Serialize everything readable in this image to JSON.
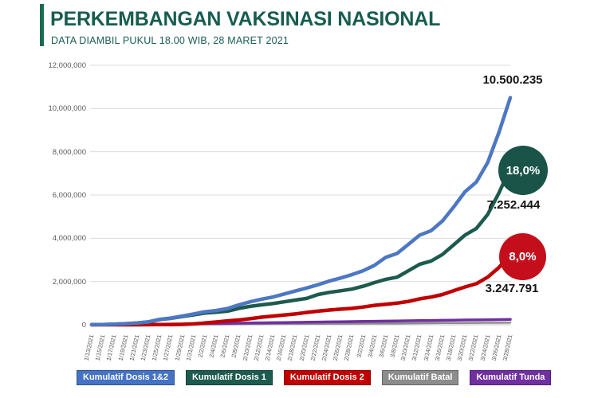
{
  "header": {
    "title": "PERKEMBANGAN VAKSINASI NASIONAL",
    "subtitle": "DATA DIAMBIL PUKUL 18.00 WIB, 28 MARET 2021",
    "accent_color": "#1a6b52",
    "title_color": "#185d4f"
  },
  "annotations": {
    "dosis12_total": "10.500.235",
    "dosis1_pct": "18,0%",
    "dosis1_total": "7.252.444",
    "dosis2_pct": "8,0%",
    "dosis2_total": "3.247.791",
    "dosis1_badge_color": "#1a5448",
    "dosis2_badge_color": "#c40e1c"
  },
  "legend": {
    "items": [
      {
        "label": "Kumulatif Dosis 1&2",
        "color": "#4472c4"
      },
      {
        "label": "Kumulatif Dosis 1",
        "color": "#1e5b4f"
      },
      {
        "label": "Kumulatif Dosis 2",
        "color": "#c00000"
      },
      {
        "label": "Kumulatif Batal",
        "color": "#8c8c8c"
      },
      {
        "label": "Kumulatif Tunda",
        "color": "#7030a0"
      }
    ]
  },
  "chart_data": {
    "type": "line",
    "title": "PERKEMBANGAN VAKSINASI NASIONAL",
    "xlabel": "",
    "ylabel": "",
    "ylim": [
      0,
      12000000
    ],
    "grid": true,
    "legend_position": "bottom",
    "y_ticks": [
      "12,000,000",
      "10,000,000",
      "8,000,000",
      "6,000,000",
      "4,000,000",
      "2,000,000",
      "0"
    ],
    "x": [
      "1/13/2021",
      "1/15/2021",
      "1/17/2021",
      "1/19/2021",
      "1/21/2021",
      "1/23/2021",
      "1/25/2021",
      "1/27/2021",
      "1/29/2021",
      "1/31/2021",
      "2/2/2021",
      "2/4/2021",
      "2/6/2021",
      "2/8/2021",
      "2/10/2021",
      "2/12/2021",
      "2/14/2021",
      "2/16/2021",
      "2/18/2021",
      "2/20/2021",
      "2/22/2021",
      "2/24/2021",
      "2/26/2021",
      "2/28/2021",
      "3/2/2021",
      "3/4/2021",
      "3/6/2021",
      "3/8/2021",
      "3/10/2021",
      "3/12/2021",
      "3/14/2021",
      "3/16/2021",
      "3/18/2021",
      "3/20/2021",
      "3/22/2021",
      "3/24/2021",
      "3/26/2021",
      "3/28/2021"
    ],
    "series": [
      {
        "name": "Kumulatif Dosis 1&2",
        "color": "#4d77c3",
        "stroke_width": 4.5,
        "values": [
          2000,
          10000,
          25000,
          50000,
          80000,
          132000,
          250000,
          310000,
          400000,
          500000,
          600000,
          660000,
          750000,
          920000,
          1060000,
          1180000,
          1280000,
          1420000,
          1560000,
          1700000,
          1850000,
          2020000,
          2160000,
          2320000,
          2500000,
          2750000,
          3120000,
          3300000,
          3720000,
          4150000,
          4350000,
          4800000,
          5450000,
          6150000,
          6600000,
          7500000,
          8900000,
          10500235
        ]
      },
      {
        "name": "Kumulatif Dosis 1",
        "color": "#1d5a4e",
        "stroke_width": 4.5,
        "values": [
          2000,
          10000,
          25000,
          48000,
          78000,
          128000,
          240000,
          300000,
          380000,
          460000,
          540000,
          580000,
          630000,
          760000,
          850000,
          920000,
          980000,
          1060000,
          1140000,
          1220000,
          1400000,
          1500000,
          1570000,
          1650000,
          1780000,
          1950000,
          2100000,
          2200000,
          2500000,
          2800000,
          2950000,
          3250000,
          3700000,
          4150000,
          4450000,
          5100000,
          6100000,
          7252444
        ]
      },
      {
        "name": "Kumulatif Dosis 2",
        "color": "#c00000",
        "stroke_width": 4.5,
        "values": [
          0,
          0,
          0,
          0,
          0,
          2000,
          6000,
          10000,
          20000,
          40000,
          80000,
          130000,
          180000,
          220000,
          280000,
          350000,
          400000,
          450000,
          500000,
          570000,
          630000,
          680000,
          720000,
          760000,
          820000,
          900000,
          950000,
          1000000,
          1080000,
          1200000,
          1280000,
          1400000,
          1580000,
          1750000,
          1900000,
          2200000,
          2650000,
          3247791
        ]
      },
      {
        "name": "Kumulatif Batal",
        "color": "#8c8c8c",
        "stroke_width": 2.5,
        "values": [
          0,
          1000,
          2000,
          3000,
          5000,
          7000,
          9000,
          11000,
          13000,
          15000,
          17000,
          20000,
          23000,
          26000,
          29000,
          32000,
          35000,
          38000,
          41000,
          44000,
          47000,
          50000,
          53000,
          56000,
          59000,
          62000,
          65000,
          68000,
          71000,
          74000,
          77000,
          80000,
          83000,
          86000,
          89000,
          91000,
          93000,
          95000
        ]
      },
      {
        "name": "Kumulatif Tunda",
        "color": "#7030a0",
        "stroke_width": 3.5,
        "values": [
          0,
          3000,
          6000,
          10000,
          15000,
          20000,
          26000,
          32000,
          38000,
          45000,
          52000,
          58000,
          65000,
          72000,
          80000,
          88000,
          95000,
          102000,
          110000,
          118000,
          125000,
          132000,
          140000,
          147000,
          155000,
          162000,
          170000,
          177000,
          185000,
          192000,
          200000,
          207000,
          214000,
          220000,
          226000,
          232000,
          238000,
          245000
        ]
      }
    ]
  }
}
